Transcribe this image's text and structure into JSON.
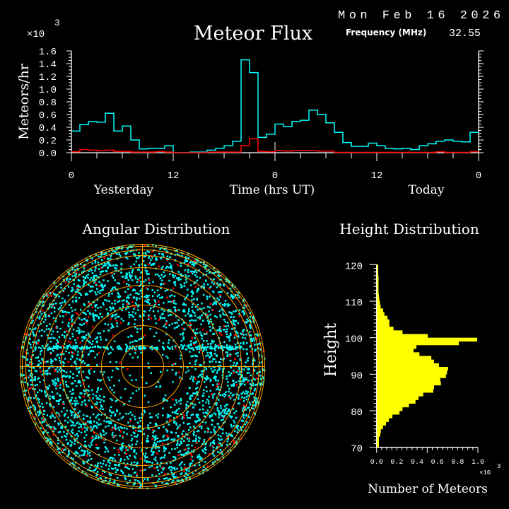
{
  "header": {
    "date": "Mon Feb 16 2026",
    "frequency_label": "Frequency (MHz)",
    "frequency_value": "32.55"
  },
  "colors": {
    "background": "#000000",
    "total": "#00ffff",
    "subset": "#ff0000",
    "height_bars": "#ffff00",
    "grid": "#ffa500",
    "axes": "#ffffff"
  },
  "chart_data": [
    {
      "type": "line",
      "title": "Meteor Flux",
      "xlabel": "Time (hrs UT)",
      "ylabel": "Meteors/hr",
      "y_multiplier": "×10",
      "y_multiplier_exp": "3",
      "day_labels": [
        "Yesterday",
        "Today"
      ],
      "xtick_labels": [
        "0",
        "12",
        "0",
        "12",
        "0"
      ],
      "ytick_labels": [
        "0.0",
        "0.2",
        "0.4",
        "0.6",
        "0.8",
        "1.0",
        "1.2",
        "1.4",
        "1.6"
      ],
      "ylim": [
        0,
        1.6
      ],
      "xlim_hours": [
        0,
        48
      ],
      "step": true,
      "current_time_marker_hour": 24,
      "series": [
        {
          "color": "#00ffff",
          "values": [
            0.34,
            0.44,
            0.49,
            0.48,
            0.62,
            0.34,
            0.42,
            0.2,
            0.06,
            0.07,
            0.07,
            0.11,
            0,
            0,
            0.01,
            0.01,
            0.04,
            0.07,
            0.11,
            0.18,
            1.46,
            1.26,
            0.24,
            0.29,
            0.45,
            0.41,
            0.49,
            0.51,
            0.67,
            0.6,
            0.47,
            0.32,
            0.16,
            0.1,
            0.1,
            0.15,
            0.11,
            0.07,
            0.06,
            0.07,
            0.05,
            0.11,
            0.14,
            0.18,
            0.2,
            0.18,
            0.17,
            0.32
          ]
        },
        {
          "color": "#ff0000",
          "values": [
            0.015,
            0.05,
            0.04,
            0.03,
            0.04,
            0.02,
            0.02,
            0.01,
            0.01,
            0.01,
            0.02,
            0.01,
            0,
            0,
            0,
            0,
            0.01,
            0.01,
            0.01,
            0.01,
            0.11,
            0.22,
            0.02,
            0.015,
            0.035,
            0.025,
            0.035,
            0.035,
            0.035,
            0.025,
            0.025,
            0.005,
            0.005,
            0.005,
            0.005,
            0.005,
            0.005,
            0.005,
            0.005,
            0.005,
            0.005,
            0.005,
            0.005,
            0.015,
            0.005,
            0.005,
            0.005,
            0.015
          ]
        }
      ]
    },
    {
      "type": "scatter",
      "title": "Angular Distribution",
      "projection": "polar",
      "series_colors": [
        "#00ffff",
        "#ff0000"
      ]
    },
    {
      "type": "bar",
      "orientation": "horizontal",
      "title": "Height Distribution",
      "ylabel": "Height",
      "xlabel": "Number of Meteors",
      "x_multiplier": "×10",
      "x_multiplier_exp": "3",
      "ylim": [
        70,
        120
      ],
      "xlim": [
        0,
        1000
      ],
      "ytick_labels": [
        "70",
        "80",
        "90",
        "100",
        "110",
        "120"
      ],
      "xtick_labels": [
        "0.0",
        "0.2",
        "0.4",
        "0.6",
        "0.8",
        "1.0"
      ],
      "bin_starts": [
        70,
        71,
        72,
        73,
        74,
        75,
        76,
        77,
        78,
        79,
        80,
        81,
        82,
        83,
        84,
        85,
        86,
        87,
        88,
        89,
        90,
        91,
        92,
        93,
        94,
        95,
        96,
        97,
        98,
        99,
        100,
        101,
        102,
        103,
        104,
        105,
        106,
        107,
        108,
        109,
        110,
        111,
        112,
        113,
        114,
        115,
        116,
        117,
        118,
        119
      ],
      "values": [
        23,
        23,
        23,
        37,
        42,
        63,
        93,
        121,
        156,
        226,
        256,
        319,
        384,
        414,
        460,
        560,
        567,
        635,
        628,
        684,
        695,
        705,
        616,
        567,
        540,
        423,
        365,
        393,
        812,
        993,
        505,
        256,
        167,
        126,
        126,
        107,
        77,
        65,
        40,
        33,
        28,
        23,
        19,
        19,
        19,
        19,
        19,
        16,
        16,
        16
      ]
    }
  ]
}
